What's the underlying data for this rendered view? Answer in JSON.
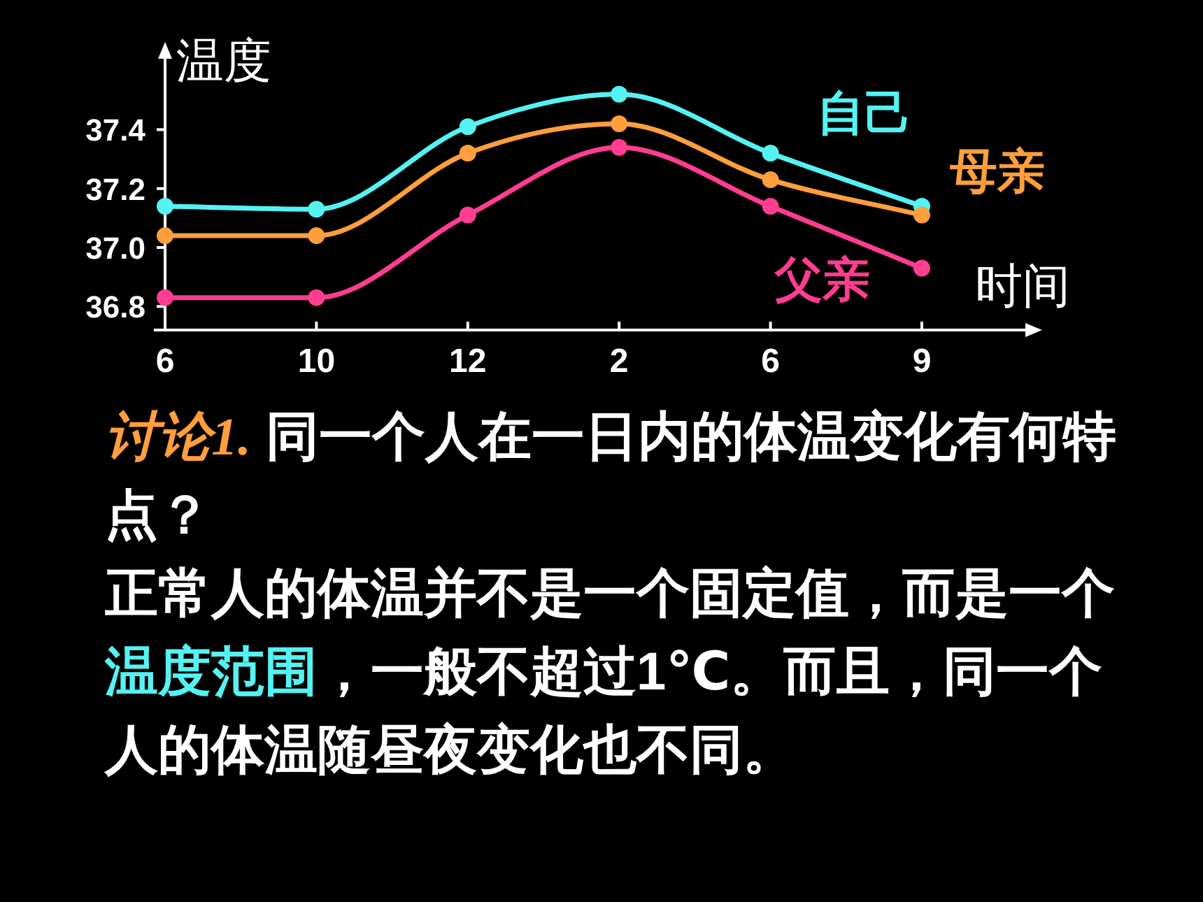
{
  "chart_data": {
    "type": "line",
    "ylabel": "温度",
    "xlabel": "时间",
    "categories": [
      "6",
      "10",
      "12",
      "2",
      "6",
      "9"
    ],
    "series": [
      {
        "name": "自己",
        "color": "#55f2f2",
        "values": [
          37.14,
          37.13,
          37.41,
          37.52,
          37.32,
          37.14
        ]
      },
      {
        "name": "母亲",
        "color": "#ff9e3d",
        "values": [
          37.04,
          37.04,
          37.32,
          37.42,
          37.23,
          37.11
        ]
      },
      {
        "name": "父亲",
        "color": "#ff3d91",
        "values": [
          36.83,
          36.83,
          37.11,
          37.34,
          37.14,
          36.93
        ]
      }
    ],
    "ylim": [
      36.72,
      37.65
    ],
    "yticks": [
      36.8,
      {
        "value": 37,
        "label": "37.0"
      },
      37.2,
      37.4
    ],
    "marker": "circle",
    "grid": false,
    "annotations": [
      "讨论1.",
      "同一个人在一日内的体温变化有何特点？",
      "正常人的体温并不是一个固定值，而是一个",
      "温度范围",
      "，一般不超过1℃。而且，同一个人的体温随昼夜变化也不同。"
    ]
  }
}
